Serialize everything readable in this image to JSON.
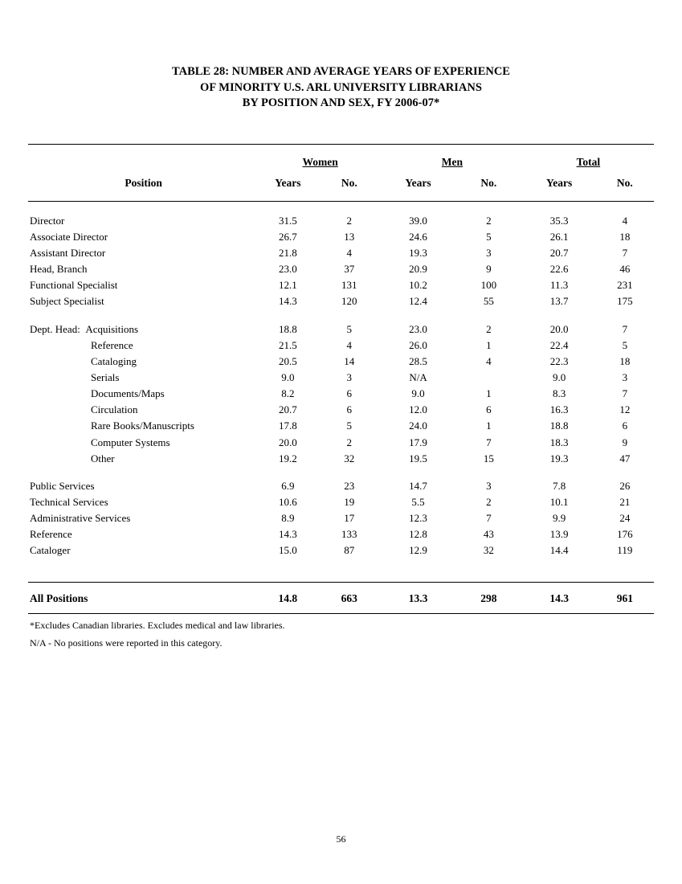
{
  "title": {
    "line1": "TABLE 28:  NUMBER AND AVERAGE YEARS OF EXPERIENCE",
    "line2": "OF MINORITY U.S. ARL UNIVERSITY LIBRARIANS",
    "line3": "BY POSITION AND SEX, FY 2006-07*"
  },
  "headers": {
    "position": "Position",
    "groups": {
      "women": "Women",
      "men": "Men",
      "total": "Total"
    },
    "sub": {
      "years": "Years",
      "no": "No."
    }
  },
  "rows_top": [
    {
      "label": "Director",
      "wyears": "31.5",
      "wno": "2",
      "myears": "39.0",
      "mno": "2",
      "tyears": "35.3",
      "tno": "4"
    },
    {
      "label": "Associate Director",
      "wyears": "26.7",
      "wno": "13",
      "myears": "24.6",
      "mno": "5",
      "tyears": "26.1",
      "tno": "18"
    },
    {
      "label": "Assistant Director",
      "wyears": "21.8",
      "wno": "4",
      "myears": "19.3",
      "mno": "3",
      "tyears": "20.7",
      "tno": "7"
    },
    {
      "label": "Head, Branch",
      "wyears": "23.0",
      "wno": "37",
      "myears": "20.9",
      "mno": "9",
      "tyears": "22.6",
      "tno": "46"
    },
    {
      "label": "Functional Specialist",
      "wyears": "12.1",
      "wno": "131",
      "myears": "10.2",
      "mno": "100",
      "tyears": "11.3",
      "tno": "231"
    },
    {
      "label": "Subject Specialist",
      "wyears": "14.3",
      "wno": "120",
      "myears": "12.4",
      "mno": "55",
      "tyears": "13.7",
      "tno": "175"
    }
  ],
  "dept_head_prefix": "Dept. Head:",
  "rows_dept": [
    {
      "label": "Acquisitions",
      "wyears": "18.8",
      "wno": "5",
      "myears": "23.0",
      "mno": "2",
      "tyears": "20.0",
      "tno": "7"
    },
    {
      "label": "Reference",
      "wyears": "21.5",
      "wno": "4",
      "myears": "26.0",
      "mno": "1",
      "tyears": "22.4",
      "tno": "5"
    },
    {
      "label": "Cataloging",
      "wyears": "20.5",
      "wno": "14",
      "myears": "28.5",
      "mno": "4",
      "tyears": "22.3",
      "tno": "18"
    },
    {
      "label": "Serials",
      "wyears": "9.0",
      "wno": "3",
      "myears": "N/A",
      "mno": "",
      "tyears": "9.0",
      "tno": "3"
    },
    {
      "label": "Documents/Maps",
      "wyears": "8.2",
      "wno": "6",
      "myears": "9.0",
      "mno": "1",
      "tyears": "8.3",
      "tno": "7"
    },
    {
      "label": "Circulation",
      "wyears": "20.7",
      "wno": "6",
      "myears": "12.0",
      "mno": "6",
      "tyears": "16.3",
      "tno": "12"
    },
    {
      "label": "Rare Books/Manuscripts",
      "wyears": "17.8",
      "wno": "5",
      "myears": "24.0",
      "mno": "1",
      "tyears": "18.8",
      "tno": "6"
    },
    {
      "label": "Computer Systems",
      "wyears": "20.0",
      "wno": "2",
      "myears": "17.9",
      "mno": "7",
      "tyears": "18.3",
      "tno": "9"
    },
    {
      "label": "Other",
      "wyears": "19.2",
      "wno": "32",
      "myears": "19.5",
      "mno": "15",
      "tyears": "19.3",
      "tno": "47"
    }
  ],
  "rows_bottom": [
    {
      "label": "Public Services",
      "wyears": "6.9",
      "wno": "23",
      "myears": "14.7",
      "mno": "3",
      "tyears": "7.8",
      "tno": "26"
    },
    {
      "label": "Technical Services",
      "wyears": "10.6",
      "wno": "19",
      "myears": "5.5",
      "mno": "2",
      "tyears": "10.1",
      "tno": "21"
    },
    {
      "label": "Administrative Services",
      "wyears": "8.9",
      "wno": "17",
      "myears": "12.3",
      "mno": "7",
      "tyears": "9.9",
      "tno": "24"
    },
    {
      "label": "Reference",
      "wyears": "14.3",
      "wno": "133",
      "myears": "12.8",
      "mno": "43",
      "tyears": "13.9",
      "tno": "176"
    },
    {
      "label": "Cataloger",
      "wyears": "15.0",
      "wno": "87",
      "myears": "12.9",
      "mno": "32",
      "tyears": "14.4",
      "tno": "119"
    }
  ],
  "all_row": {
    "label": "All Positions",
    "wyears": "14.8",
    "wno": "663",
    "myears": "13.3",
    "mno": "298",
    "tyears": "14.3",
    "tno": "961"
  },
  "footnotes": {
    "f1": "*Excludes Canadian libraries. Excludes medical and law libraries.",
    "f2": "N/A - No positions were reported in this category."
  },
  "page_number": "56",
  "style": {
    "background_color": "#ffffff",
    "text_color": "#000000",
    "rule_color": "#000000",
    "title_fontsize_pt": 11,
    "body_fontsize_pt": 10,
    "footnote_fontsize_pt": 9
  }
}
